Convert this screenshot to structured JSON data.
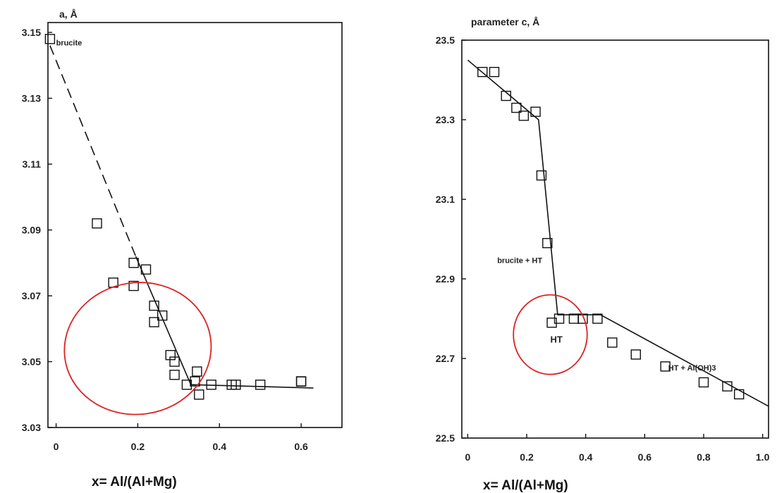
{
  "chart_data": [
    {
      "type": "scatter",
      "ylabel": "a, Å",
      "xlabel": "x= Al/(Al+Mg)",
      "xlim": [
        -0.02,
        0.7
      ],
      "ylim": [
        3.03,
        3.153
      ],
      "x_ticks": [
        0,
        0.2,
        0.4,
        0.6
      ],
      "x_tick_labels": [
        "0",
        "0.2",
        "0.4",
        "0.6"
      ],
      "y_ticks": [
        3.03,
        3.05,
        3.07,
        3.09,
        3.11,
        3.13,
        3.15
      ],
      "y_tick_labels": [
        "3.03",
        "3.05",
        "3.07",
        "3.09",
        "3.11",
        "3.13",
        "3.15"
      ],
      "grid": false,
      "annotations": [
        {
          "text": "brucite",
          "x": 0.0,
          "y": 3.146
        }
      ],
      "series": [
        {
          "marker": "open-square",
          "points": [
            [
              -0.015,
              3.148
            ],
            [
              0.1,
              3.092
            ],
            [
              0.14,
              3.074
            ],
            [
              0.19,
              3.08
            ],
            [
              0.19,
              3.073
            ],
            [
              0.22,
              3.078
            ],
            [
              0.24,
              3.067
            ],
            [
              0.24,
              3.062
            ],
            [
              0.26,
              3.064
            ],
            [
              0.28,
              3.052
            ],
            [
              0.29,
              3.05
            ],
            [
              0.29,
              3.046
            ],
            [
              0.32,
              3.043
            ],
            [
              0.34,
              3.044
            ],
            [
              0.345,
              3.047
            ],
            [
              0.35,
              3.04
            ],
            [
              0.38,
              3.043
            ],
            [
              0.43,
              3.043
            ],
            [
              0.44,
              3.043
            ],
            [
              0.5,
              3.043
            ],
            [
              0.6,
              3.044
            ],
            [
              0.6,
              3.044
            ]
          ]
        }
      ],
      "fit_lines": [
        {
          "style": "dashed",
          "points": [
            [
              -0.015,
              3.146
            ],
            [
              0.195,
              3.082
            ]
          ]
        },
        {
          "style": "solid",
          "points": [
            [
              0.195,
              3.082
            ],
            [
              0.33,
              3.043
            ],
            [
              0.63,
              3.042
            ]
          ]
        }
      ],
      "highlight": {
        "shape": "ellipse",
        "color": "#dd2222",
        "cx": 0.2,
        "cy": 3.054,
        "rx": 0.18,
        "ry": 0.02
      }
    },
    {
      "type": "scatter",
      "ylabel": "parameter c, Å",
      "xlabel": "x= Al/(Al+Mg)",
      "xlim": [
        -0.02,
        1.02
      ],
      "ylim": [
        22.5,
        23.5
      ],
      "x_ticks": [
        0,
        0.2,
        0.4,
        0.6,
        0.8,
        1.0
      ],
      "x_tick_labels": [
        "0",
        "0.2",
        "0.4",
        "0.6",
        "0.8",
        "1.0"
      ],
      "y_ticks": [
        22.5,
        22.7,
        22.9,
        23.1,
        23.3,
        23.5
      ],
      "y_tick_labels": [
        "22.5",
        "22.7",
        "22.9",
        "23.1",
        "23.3",
        "23.5"
      ],
      "grid": false,
      "annotations": [
        {
          "text": "brucite + HT",
          "x": 0.1,
          "y": 22.94
        },
        {
          "text": "HT",
          "x": 0.28,
          "y": 22.74
        },
        {
          "text": "HT + Al(OH)3",
          "x": 0.68,
          "y": 22.67
        }
      ],
      "series": [
        {
          "marker": "open-square",
          "points": [
            [
              0.05,
              23.42
            ],
            [
              0.09,
              23.42
            ],
            [
              0.13,
              23.36
            ],
            [
              0.165,
              23.33
            ],
            [
              0.19,
              23.31
            ],
            [
              0.23,
              23.32
            ],
            [
              0.25,
              23.16
            ],
            [
              0.27,
              22.99
            ],
            [
              0.285,
              22.79
            ],
            [
              0.31,
              22.8
            ],
            [
              0.36,
              22.8
            ],
            [
              0.39,
              22.8
            ],
            [
              0.44,
              22.8
            ],
            [
              0.49,
              22.74
            ],
            [
              0.57,
              22.71
            ],
            [
              0.67,
              22.68
            ],
            [
              0.8,
              22.64
            ],
            [
              0.88,
              22.63
            ],
            [
              0.92,
              22.61
            ]
          ]
        }
      ],
      "fit_lines": [
        {
          "style": "solid",
          "points": [
            [
              0.0,
              23.45
            ],
            [
              0.24,
              23.3
            ],
            [
              0.305,
              22.81
            ],
            [
              0.45,
              22.81
            ],
            [
              1.02,
              22.58
            ]
          ]
        }
      ],
      "highlight": {
        "shape": "ellipse",
        "color": "#dd2222",
        "cx": 0.28,
        "cy": 22.76,
        "rx": 0.125,
        "ry": 0.1
      }
    }
  ]
}
